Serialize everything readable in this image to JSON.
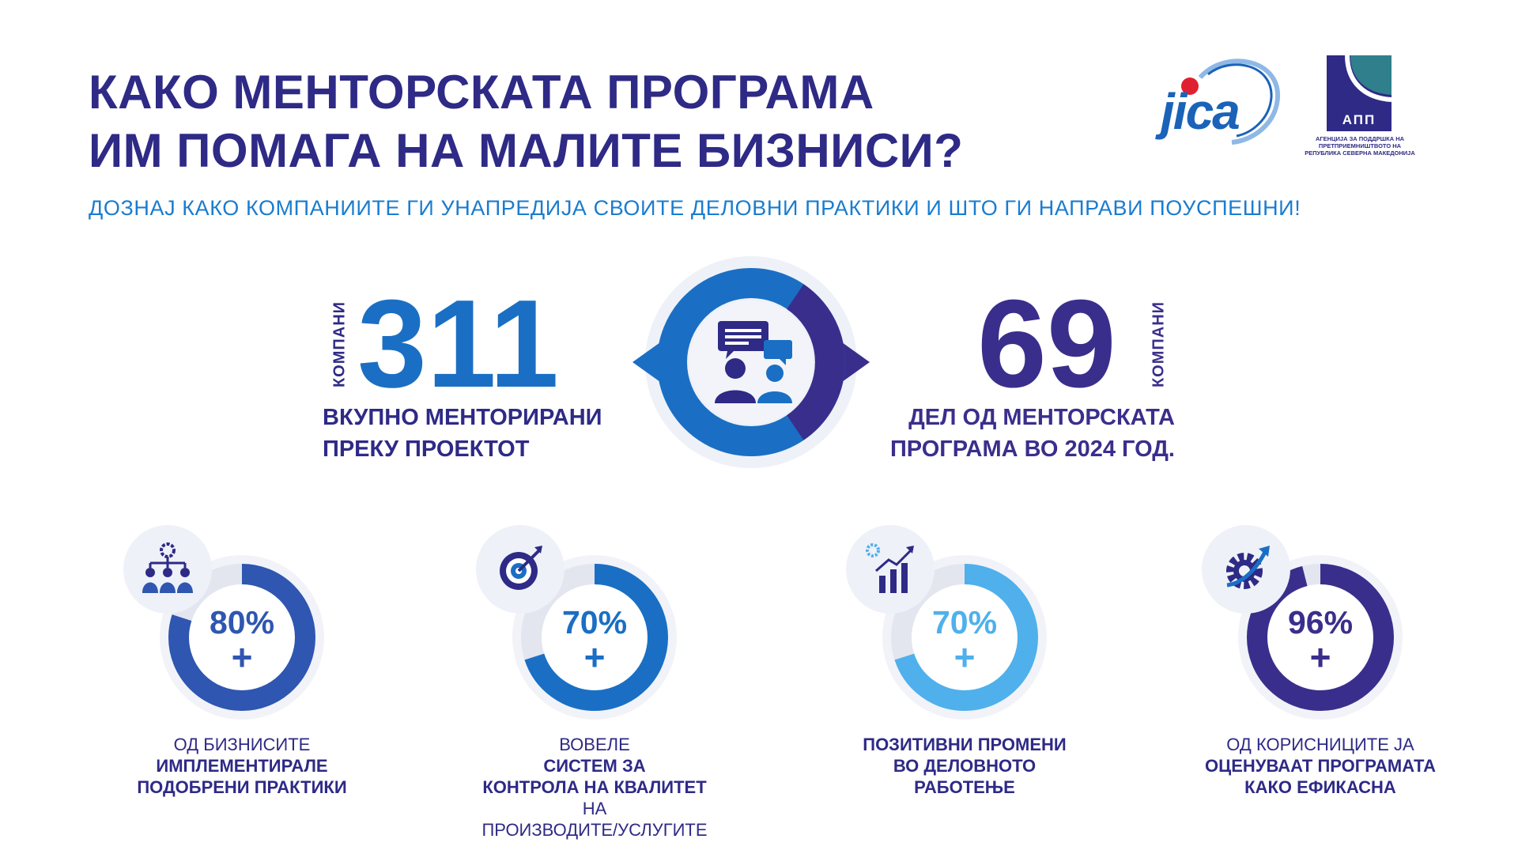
{
  "header": {
    "title_line1": "КАКО МЕНТОРСКАТА ПРОГРАМА",
    "title_line2": "ИМ ПОМАГА НА МАЛИТЕ БИЗНИСИ?",
    "subtitle": "ДОЗНАЈ КАКО КОМПАНИИТЕ ГИ УНАПРЕДИЈА СВОИТЕ ДЕЛОВНИ ПРАКТИКИ И ШТО ГИ НАПРАВИ ПОУСПЕШНИ!"
  },
  "logos": {
    "jica": "jica",
    "app_letters": "АПП",
    "app_caption_line1": "АГЕНЦИЈА ЗА ПОДДРШКА НА",
    "app_caption_line2": "ПРЕТПРИЕМНИШТВОТО НА",
    "app_caption_line3": "РЕПУБЛИКА СЕВЕРНА МАКЕДОНИЈА"
  },
  "stats": {
    "left": {
      "unit_label": "КОМПАНИ",
      "number": "311",
      "desc_line1": "ВКУПНО МЕНТОРИРАНИ",
      "desc_line2": "ПРЕКУ ПРОЕКТОТ",
      "color": "#1a6fc4"
    },
    "right": {
      "unit_label": "КОМПАНИ",
      "number": "69",
      "desc_line1": "ДЕЛ ОД МЕНТОРСКАТА",
      "desc_line2": "ПРОГРАМА ВО 2024 ГОД.",
      "color": "#3a2e8c"
    },
    "emblem_icon": "mentoring-chat-icon"
  },
  "metrics": [
    {
      "icon": "team-gear-icon",
      "percent": "80%",
      "plus": "+",
      "value": 0.8,
      "color": "#2f56b0",
      "caption_line1_normal": "ОД БИЗНИСИТЕ",
      "caption_line2_bold": "ИМПЛЕМЕНТИРАЛЕ",
      "caption_line3_bold": "ПОДОБРЕНИ ПРАКТИКИ"
    },
    {
      "icon": "target-arrow-icon",
      "percent": "70%",
      "plus": "+",
      "value": 0.7,
      "color": "#1a6fc4",
      "caption_line1_normal": "ВОВЕЛЕ ",
      "caption_line1_bold": "СИСТЕМ ЗА",
      "caption_line2_bold": "КОНТРОЛА НА КВАЛИТЕТ",
      "caption_line2_normal": " НА",
      "caption_line3_normal": "ПРОИЗВОДИТЕ/УСЛУГИТЕ"
    },
    {
      "icon": "growth-chart-icon",
      "percent": "70%",
      "plus": "+",
      "value": 0.7,
      "color": "#4fb0ec",
      "caption_line1_bold": "ПОЗИТИВНИ ПРОМЕНИ",
      "caption_line2_bold": "ВО ДЕЛОВНОТО",
      "caption_line3_bold": "РАБОТЕЊЕ"
    },
    {
      "icon": "gear-arrow-icon",
      "percent": "96%",
      "plus": "+",
      "value": 0.96,
      "color": "#3a2e8c",
      "caption_line1_normal": "ОД КОРИСНИЦИТЕ ЈА",
      "caption_line2_bold": "ОЦЕНУВААТ ПРОГРАМАТА",
      "caption_line3_bold": "КАКО ЕФИКАСНА"
    }
  ]
}
